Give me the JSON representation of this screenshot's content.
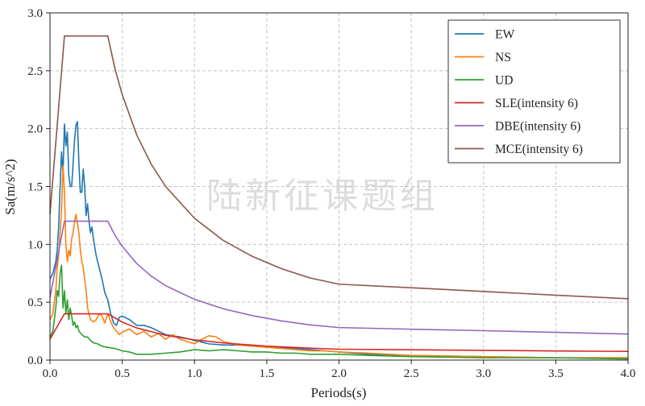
{
  "chart_data": {
    "type": "line",
    "xlabel": "Periods(s)",
    "ylabel": "Sa(m/s^2)",
    "xlim": [
      0,
      4
    ],
    "ylim": [
      0,
      3
    ],
    "xticks": [
      "0.0",
      "0.5",
      "1.0",
      "1.5",
      "2.0",
      "2.5",
      "3.0",
      "3.5",
      "4.0"
    ],
    "yticks": [
      "0.0",
      "0.5",
      "1.0",
      "1.5",
      "2.0",
      "2.5",
      "3.0"
    ],
    "grid": true,
    "legend_position": "top-right",
    "watermark": "陆新征课题组",
    "series": [
      {
        "name": "EW",
        "color": "#1f77b4",
        "x": [
          0,
          0.02,
          0.04,
          0.05,
          0.06,
          0.07,
          0.08,
          0.09,
          0.1,
          0.11,
          0.12,
          0.13,
          0.14,
          0.15,
          0.16,
          0.17,
          0.18,
          0.19,
          0.2,
          0.21,
          0.22,
          0.23,
          0.24,
          0.25,
          0.26,
          0.27,
          0.28,
          0.29,
          0.3,
          0.32,
          0.34,
          0.36,
          0.38,
          0.4,
          0.42,
          0.44,
          0.46,
          0.48,
          0.5,
          0.55,
          0.6,
          0.65,
          0.7,
          0.75,
          0.8,
          0.85,
          0.9,
          1.0,
          1.1,
          1.2,
          1.3,
          1.4,
          1.5,
          1.6,
          1.7,
          1.8,
          1.9,
          2.0,
          2.2,
          2.5,
          3.0,
          3.5,
          4.0
        ],
        "y": [
          0.7,
          0.75,
          0.85,
          0.95,
          1.15,
          1.5,
          1.8,
          1.6,
          2.04,
          1.85,
          1.97,
          1.6,
          1.5,
          1.5,
          1.7,
          1.9,
          2.03,
          2.06,
          1.7,
          1.45,
          1.45,
          1.65,
          1.5,
          1.25,
          1.35,
          1.2,
          1.1,
          1.15,
          1.05,
          0.9,
          0.8,
          0.7,
          0.58,
          0.52,
          0.4,
          0.32,
          0.3,
          0.37,
          0.38,
          0.35,
          0.3,
          0.3,
          0.28,
          0.25,
          0.22,
          0.21,
          0.2,
          0.17,
          0.14,
          0.13,
          0.13,
          0.12,
          0.12,
          0.11,
          0.1,
          0.09,
          0.08,
          0.07,
          0.05,
          0.04,
          0.03,
          0.02,
          0.02
        ]
      },
      {
        "name": "NS",
        "color": "#ff7f0e",
        "x": [
          0,
          0.02,
          0.04,
          0.05,
          0.06,
          0.07,
          0.08,
          0.09,
          0.1,
          0.11,
          0.12,
          0.13,
          0.14,
          0.15,
          0.16,
          0.17,
          0.18,
          0.19,
          0.2,
          0.21,
          0.22,
          0.23,
          0.24,
          0.25,
          0.26,
          0.27,
          0.28,
          0.3,
          0.32,
          0.34,
          0.36,
          0.38,
          0.4,
          0.42,
          0.44,
          0.46,
          0.48,
          0.5,
          0.55,
          0.6,
          0.65,
          0.7,
          0.75,
          0.8,
          0.85,
          0.9,
          1.0,
          1.05,
          1.1,
          1.15,
          1.2,
          1.3,
          1.4,
          1.5,
          1.6,
          1.7,
          1.8,
          1.9,
          2.0,
          2.2,
          2.5,
          3.0,
          3.5,
          4.0
        ],
        "y": [
          0.35,
          0.4,
          0.6,
          0.8,
          0.9,
          1.1,
          1.3,
          1.68,
          1.45,
          1.0,
          0.85,
          0.95,
          0.9,
          1.05,
          1.1,
          1.2,
          1.26,
          1.18,
          1.1,
          0.95,
          0.85,
          0.8,
          0.7,
          0.6,
          0.45,
          0.4,
          0.35,
          0.33,
          0.35,
          0.4,
          0.38,
          0.32,
          0.4,
          0.33,
          0.28,
          0.25,
          0.22,
          0.24,
          0.27,
          0.22,
          0.25,
          0.2,
          0.23,
          0.18,
          0.22,
          0.18,
          0.14,
          0.18,
          0.21,
          0.2,
          0.16,
          0.13,
          0.12,
          0.11,
          0.1,
          0.09,
          0.08,
          0.08,
          0.07,
          0.06,
          0.04,
          0.03,
          0.02,
          0.02
        ]
      },
      {
        "name": "UD",
        "color": "#2ca02c",
        "x": [
          0,
          0.02,
          0.04,
          0.05,
          0.06,
          0.07,
          0.08,
          0.09,
          0.1,
          0.11,
          0.12,
          0.13,
          0.14,
          0.15,
          0.16,
          0.17,
          0.18,
          0.19,
          0.2,
          0.22,
          0.24,
          0.26,
          0.28,
          0.3,
          0.33,
          0.36,
          0.4,
          0.45,
          0.5,
          0.55,
          0.6,
          0.7,
          0.8,
          0.9,
          1.0,
          1.1,
          1.2,
          1.3,
          1.4,
          1.5,
          1.6,
          1.7,
          1.8,
          1.9,
          2.0,
          2.2,
          2.5,
          3.0,
          3.5,
          4.0
        ],
        "y": [
          0.2,
          0.25,
          0.45,
          0.6,
          0.55,
          0.75,
          0.82,
          0.45,
          0.6,
          0.4,
          0.52,
          0.35,
          0.45,
          0.38,
          0.3,
          0.33,
          0.28,
          0.3,
          0.25,
          0.22,
          0.2,
          0.2,
          0.17,
          0.15,
          0.14,
          0.12,
          0.11,
          0.1,
          0.08,
          0.07,
          0.05,
          0.05,
          0.06,
          0.07,
          0.09,
          0.08,
          0.09,
          0.08,
          0.07,
          0.07,
          0.06,
          0.06,
          0.05,
          0.05,
          0.05,
          0.04,
          0.03,
          0.02,
          0.02,
          0.01
        ]
      },
      {
        "name": "SLE(intensity 6)",
        "color": "#d62728",
        "x": [
          0,
          0.1,
          0.4,
          0.5,
          0.6,
          0.8,
          1.0,
          1.2,
          1.5,
          1.8,
          2.0,
          2.5,
          3.0,
          3.5,
          4.0
        ],
        "y": [
          0.18,
          0.4,
          0.4,
          0.328,
          0.278,
          0.214,
          0.175,
          0.148,
          0.121,
          0.103,
          0.094,
          0.089,
          0.084,
          0.079,
          0.075
        ]
      },
      {
        "name": "DBE(intensity 6)",
        "color": "#9467bd",
        "x": [
          0,
          0.1,
          0.4,
          0.45,
          0.5,
          0.6,
          0.7,
          0.8,
          1.0,
          1.2,
          1.4,
          1.6,
          1.8,
          2.0,
          2.5,
          3.0,
          3.5,
          4.0
        ],
        "y": [
          0.54,
          1.2,
          1.2,
          1.078,
          0.983,
          0.834,
          0.726,
          0.643,
          0.525,
          0.443,
          0.384,
          0.339,
          0.304,
          0.281,
          0.267,
          0.254,
          0.24,
          0.225
        ]
      },
      {
        "name": "MCE(intensity 6)",
        "color": "#8c564b",
        "x": [
          0,
          0.1,
          0.4,
          0.45,
          0.5,
          0.6,
          0.7,
          0.8,
          1.0,
          1.2,
          1.4,
          1.6,
          1.8,
          2.0,
          2.5,
          3.0,
          3.5,
          4.0
        ],
        "y": [
          1.26,
          2.8,
          2.8,
          2.515,
          2.293,
          1.946,
          1.694,
          1.5,
          1.225,
          1.033,
          0.896,
          0.791,
          0.709,
          0.656,
          0.625,
          0.593,
          0.561,
          0.53
        ]
      }
    ]
  }
}
